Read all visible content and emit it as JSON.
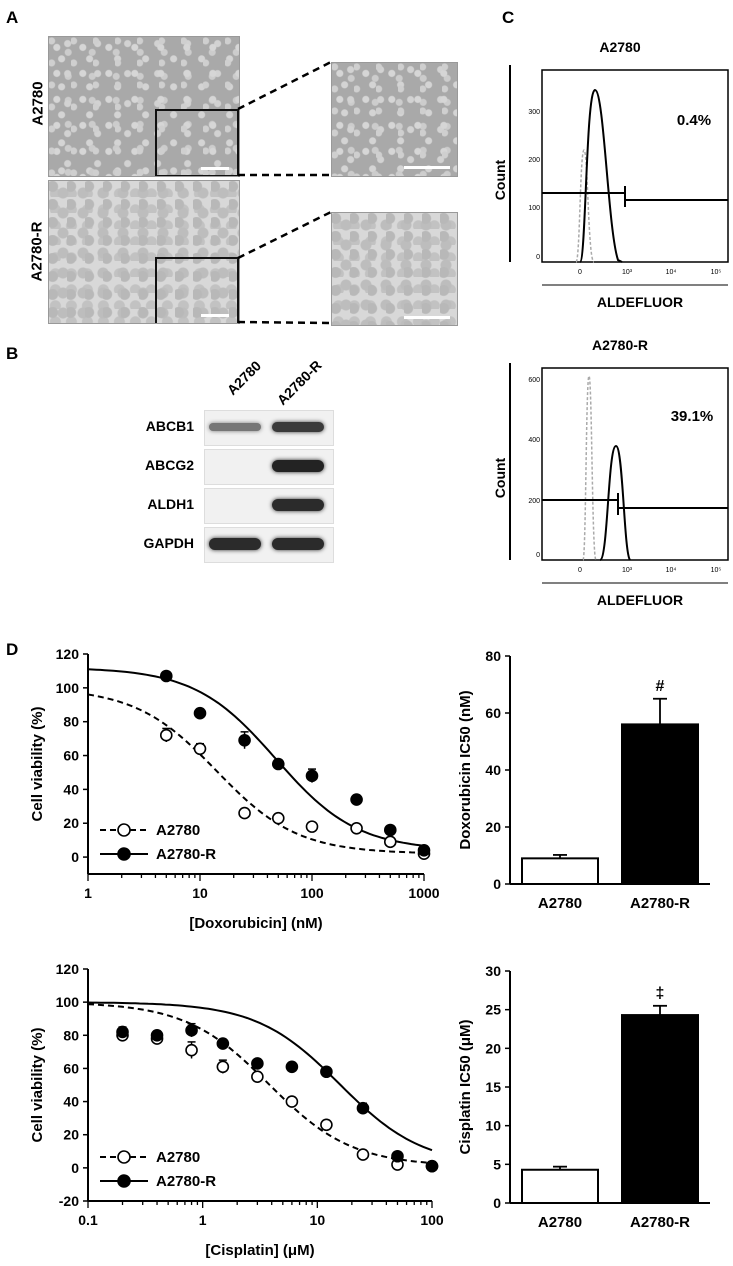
{
  "panels": {
    "A": {
      "letter": "A",
      "row_labels": [
        "A2780",
        "A2780-R"
      ]
    },
    "B": {
      "letter": "B",
      "columns": [
        "A2780",
        "A2780-R"
      ],
      "rows": [
        {
          "name": "ABCB1",
          "bands": [
            0.35,
            0.75
          ]
        },
        {
          "name": "ABCG2",
          "bands": [
            0.0,
            0.9
          ]
        },
        {
          "name": "ALDH1",
          "bands": [
            0.0,
            0.85
          ]
        },
        {
          "name": "GAPDH",
          "bands": [
            0.85,
            0.85
          ]
        }
      ]
    },
    "C": {
      "letter": "C",
      "plots": [
        {
          "title": "A2780",
          "percent": "0.4%",
          "ylabel": "Count",
          "xlabel": "ALDEFLUOR",
          "yticks": [
            "0",
            "100",
            "200",
            "300"
          ],
          "xticks": [
            "0",
            "10³",
            "10⁴",
            "10⁵"
          ]
        },
        {
          "title": "A2780-R",
          "percent": "39.1%",
          "ylabel": "Count",
          "xlabel": "ALDEFLUOR",
          "yticks": [
            "0",
            "200",
            "400",
            "600"
          ],
          "xticks": [
            "0",
            "10³",
            "10⁴",
            "10⁵"
          ]
        }
      ]
    },
    "D": {
      "letter": "D"
    }
  },
  "chart_data": [
    {
      "type": "scatter",
      "ylabel": "Cell viability (%)",
      "xlabel": "[Doxorubicin] (nM)",
      "xscale": "log",
      "xlim": [
        1,
        1000
      ],
      "ylim": [
        -10,
        120
      ],
      "yticks": [
        0,
        20,
        40,
        60,
        80,
        100,
        120
      ],
      "xticks": [
        1,
        10,
        100,
        1000
      ],
      "legend_position": "bottom-left",
      "series": [
        {
          "name": "A2780",
          "marker": "open-circle",
          "line": "dashed",
          "x": [
            5,
            10,
            25,
            50,
            100,
            250,
            500,
            1000
          ],
          "y": [
            72,
            64,
            26,
            23,
            18,
            17,
            9,
            2
          ],
          "err": [
            4,
            3,
            1,
            2,
            1,
            1,
            1,
            1
          ]
        },
        {
          "name": "A2780-R",
          "marker": "filled-circle",
          "line": "solid",
          "x": [
            5,
            10,
            25,
            50,
            100,
            250,
            500,
            1000
          ],
          "y": [
            107,
            85,
            69,
            55,
            48,
            34,
            16,
            4
          ],
          "err": [
            1,
            2,
            5,
            1,
            4,
            1,
            1,
            2
          ]
        }
      ]
    },
    {
      "type": "bar",
      "ylabel": "Doxorubicin IC50 (nM)",
      "categories": [
        "A2780",
        "A2780-R"
      ],
      "values": [
        9,
        56
      ],
      "err": [
        1.2,
        9
      ],
      "annotation": "#",
      "ylim": [
        0,
        80
      ],
      "yticks": [
        0,
        20,
        40,
        60,
        80
      ]
    },
    {
      "type": "scatter",
      "ylabel": "Cell viability (%)",
      "xlabel": "[Cisplatin] (μM)",
      "xscale": "log",
      "xlim": [
        0.1,
        100
      ],
      "ylim": [
        -20,
        120
      ],
      "yticks": [
        -20,
        0,
        20,
        40,
        60,
        80,
        100,
        120
      ],
      "xticks": [
        0.1,
        1,
        10,
        100
      ],
      "legend_position": "bottom-left",
      "series": [
        {
          "name": "A2780",
          "marker": "open-circle",
          "line": "dashed",
          "x": [
            0.2,
            0.4,
            0.8,
            1.5,
            3,
            6,
            12,
            25,
            50,
            100
          ],
          "y": [
            80,
            78,
            71,
            61,
            55,
            40,
            26,
            8,
            2,
            1
          ],
          "err": [
            3,
            3,
            5,
            4,
            1,
            1,
            1,
            1,
            1,
            1
          ]
        },
        {
          "name": "A2780-R",
          "marker": "filled-circle",
          "line": "solid",
          "x": [
            0.2,
            0.4,
            0.8,
            1.5,
            3,
            6,
            12,
            25,
            50,
            100
          ],
          "y": [
            82,
            80,
            83,
            75,
            63,
            61,
            58,
            36,
            7,
            1
          ],
          "err": [
            3,
            2,
            4,
            2,
            1,
            1,
            1,
            3,
            1,
            1
          ]
        }
      ]
    },
    {
      "type": "bar",
      "ylabel": "Cisplatin IC50 (μM)",
      "categories": [
        "A2780",
        "A2780-R"
      ],
      "values": [
        4.3,
        24.3
      ],
      "err": [
        0.4,
        1.2
      ],
      "annotation": "‡",
      "ylim": [
        0,
        30
      ],
      "yticks": [
        0,
        5,
        10,
        15,
        20,
        25,
        30
      ]
    }
  ]
}
